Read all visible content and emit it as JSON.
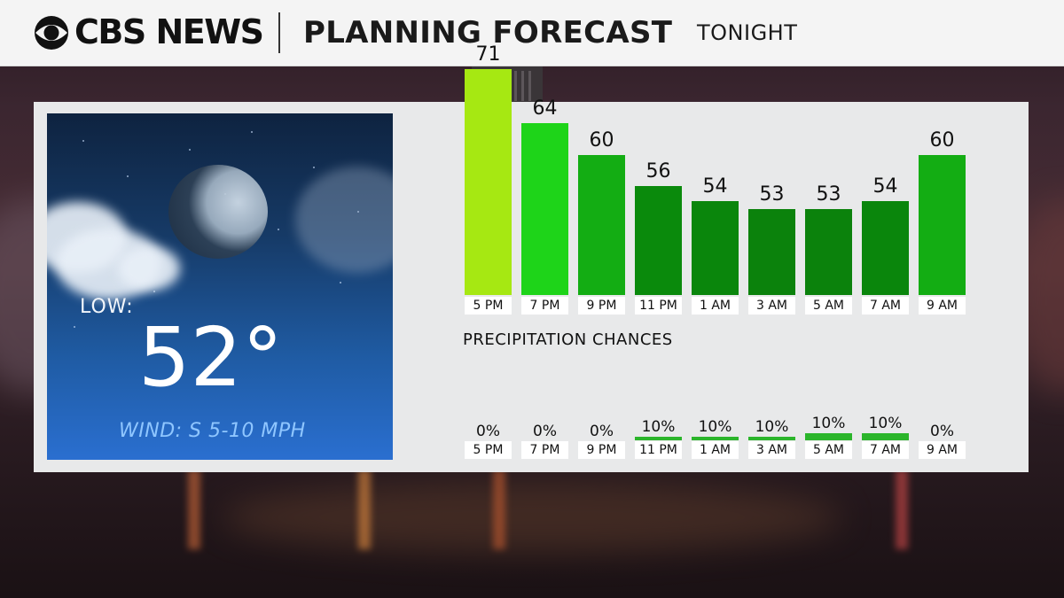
{
  "header": {
    "brand": "CBS NEWS",
    "title": "PLANNING FORECAST",
    "subtitle": "TONIGHT"
  },
  "overview": {
    "low_label": "LOW:",
    "low_temp": "52°",
    "wind": "WIND: S 5-10 MPH"
  },
  "precip_heading": "PRECIPITATION CHANCES",
  "colors": {
    "bar_71": "#a6e812",
    "bar_64": "#1ed419",
    "bar_60": "#13ad13",
    "bar_56": "#0a8a0c",
    "bar_54": "#0a860c",
    "bar_53": "#0b820c",
    "precip_line": "#2bb52b"
  },
  "chart_data": [
    {
      "type": "bar",
      "categories": [
        "5 PM",
        "7 PM",
        "9 PM",
        "11 PM",
        "1 AM",
        "3 AM",
        "5 AM",
        "7 AM",
        "9 AM"
      ],
      "values": [
        71,
        64,
        60,
        56,
        54,
        53,
        53,
        54,
        60
      ],
      "value_labels": [
        "71",
        "64",
        "60",
        "56",
        "54",
        "53",
        "53",
        "54",
        "60"
      ]
    },
    {
      "type": "bar",
      "title": "PRECIPITATION CHANCES",
      "categories": [
        "5 PM",
        "7 PM",
        "9 PM",
        "11 PM",
        "1 AM",
        "3 AM",
        "5 AM",
        "7 AM",
        "9 AM"
      ],
      "values": [
        0,
        0,
        0,
        10,
        10,
        10,
        10,
        10,
        0
      ],
      "value_labels": [
        "0%",
        "0%",
        "0%",
        "10%",
        "10%",
        "10%",
        "10%",
        "10%",
        "0%"
      ]
    }
  ]
}
